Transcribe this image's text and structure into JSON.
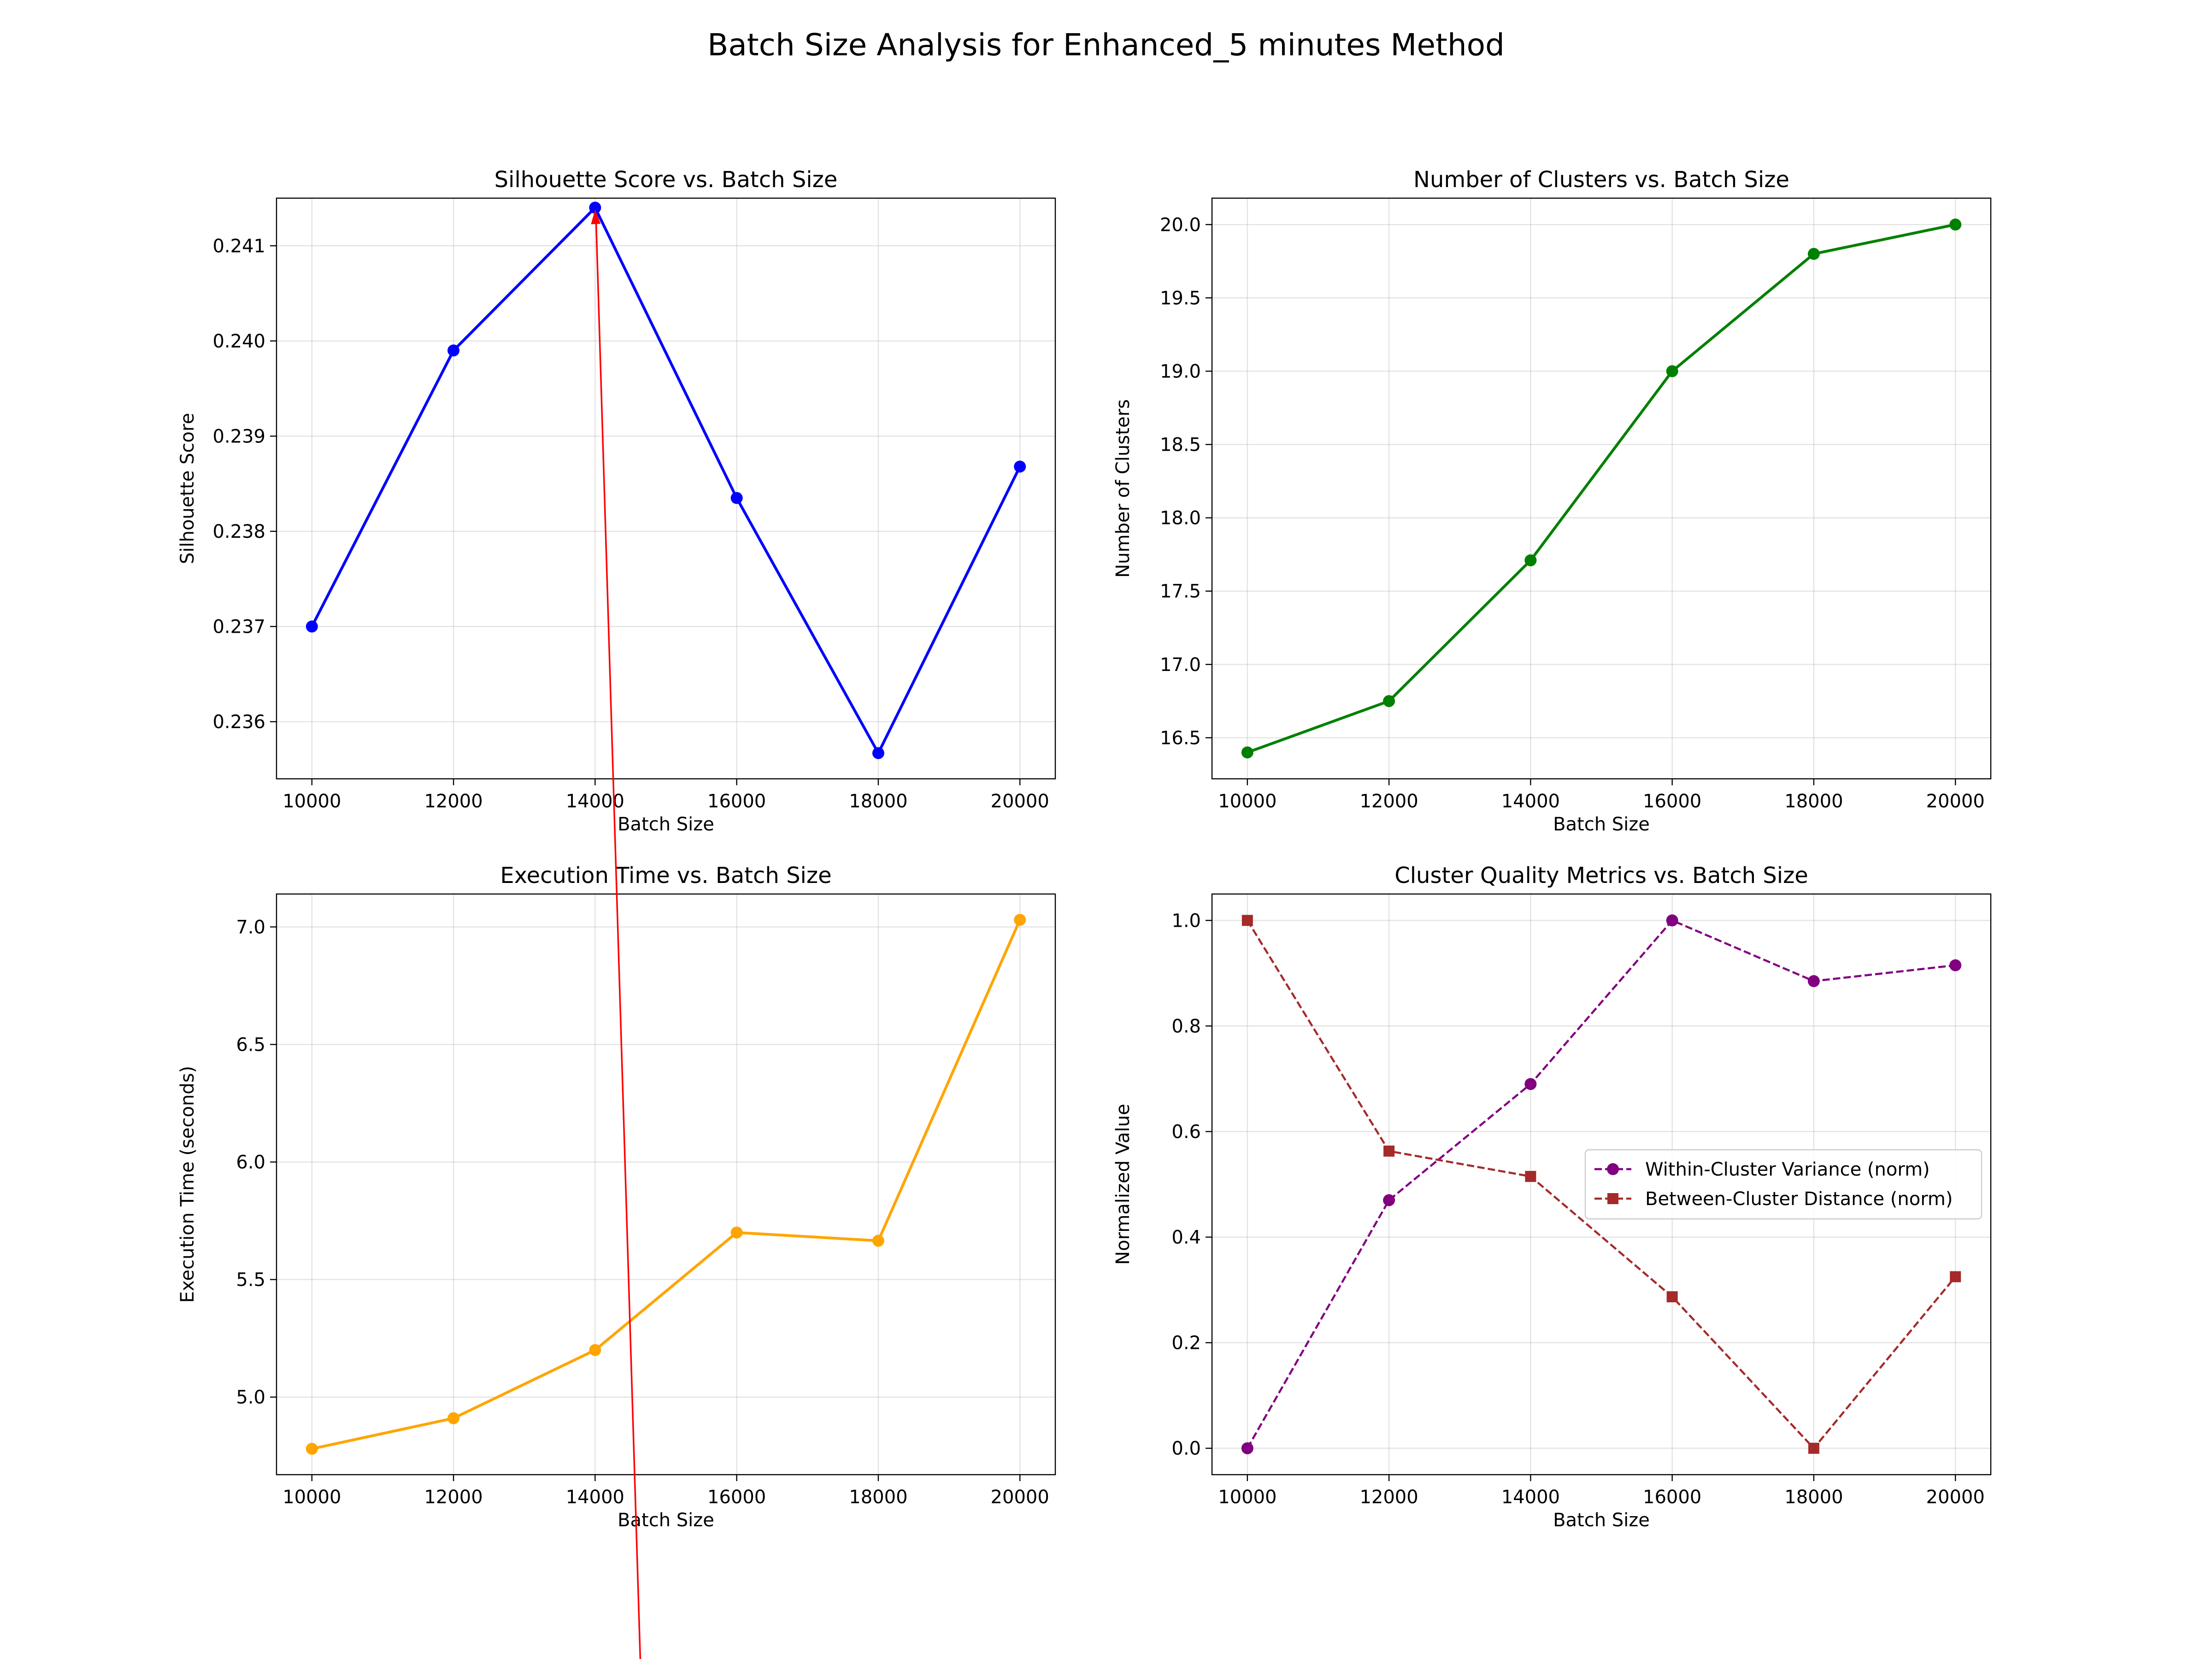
{
  "suptitle": "Batch Size Analysis for Enhanced_5 minutes Method",
  "chart_data": [
    {
      "type": "line",
      "title": "Silhouette Score vs. Batch Size",
      "xlabel": "Batch Size",
      "ylabel": "Silhouette Score",
      "x": [
        10000,
        12000,
        14000,
        16000,
        18000,
        20000
      ],
      "x_ticks": [
        "10000",
        "12000",
        "14000",
        "16000",
        "18000",
        "20000"
      ],
      "xlim": [
        9500,
        20500
      ],
      "ylim": [
        0.2354,
        0.2415
      ],
      "y_ticks": [
        "0.236",
        "0.237",
        "0.238",
        "0.239",
        "0.240",
        "0.241"
      ],
      "grid": true,
      "series": [
        {
          "values": [
            0.237,
            0.2399,
            0.2414,
            0.23835,
            0.23567,
            0.23868
          ],
          "color": "#0000ff",
          "marker": "circle",
          "linestyle": "solid"
        }
      ]
    },
    {
      "type": "line",
      "title": "Number of Clusters vs. Batch Size",
      "xlabel": "Batch Size",
      "ylabel": "Number of Clusters",
      "x": [
        10000,
        12000,
        14000,
        16000,
        18000,
        20000
      ],
      "x_ticks": [
        "10000",
        "12000",
        "14000",
        "16000",
        "18000",
        "20000"
      ],
      "xlim": [
        9500,
        20500
      ],
      "ylim": [
        16.22,
        20.18
      ],
      "y_ticks": [
        "16.5",
        "17.0",
        "17.5",
        "18.0",
        "18.5",
        "19.0",
        "19.5",
        "20.0"
      ],
      "grid": true,
      "series": [
        {
          "values": [
            16.4,
            16.75,
            17.71,
            19.0,
            19.8,
            20.0
          ],
          "color": "#008000",
          "marker": "circle",
          "linestyle": "solid"
        }
      ]
    },
    {
      "type": "line",
      "title": "Execution Time vs. Batch Size",
      "xlabel": "Batch Size",
      "ylabel": "Execution Time (seconds)",
      "x": [
        10000,
        12000,
        14000,
        16000,
        18000,
        20000
      ],
      "x_ticks": [
        "10000",
        "12000",
        "14000",
        "16000",
        "18000",
        "20000"
      ],
      "xlim": [
        9500,
        20500
      ],
      "ylim": [
        4.67,
        7.14
      ],
      "y_ticks": [
        "5.0",
        "5.5",
        "6.0",
        "6.5",
        "7.0"
      ],
      "grid": true,
      "series": [
        {
          "values": [
            4.78,
            4.91,
            5.2,
            5.7,
            5.665,
            7.03
          ],
          "color": "#ffa500",
          "marker": "circle",
          "linestyle": "solid"
        }
      ]
    },
    {
      "type": "line",
      "title": "Cluster Quality Metrics vs. Batch Size",
      "xlabel": "Batch Size",
      "ylabel": "Normalized Value",
      "x": [
        10000,
        12000,
        14000,
        16000,
        18000,
        20000
      ],
      "x_ticks": [
        "10000",
        "12000",
        "14000",
        "16000",
        "18000",
        "20000"
      ],
      "xlim": [
        9500,
        20500
      ],
      "ylim": [
        -0.05,
        1.05
      ],
      "y_ticks": [
        "0.0",
        "0.2",
        "0.4",
        "0.6",
        "0.8",
        "1.0"
      ],
      "grid": true,
      "legend": "center-right",
      "series": [
        {
          "name": "Within-Cluster Variance (norm)",
          "values": [
            0.0,
            0.47,
            0.69,
            1.0,
            0.885,
            0.915
          ],
          "color": "#800080",
          "marker": "circle",
          "linestyle": "dashed"
        },
        {
          "name": "Between-Cluster Distance (norm)",
          "values": [
            1.0,
            0.563,
            0.515,
            0.287,
            0.0,
            0.325
          ],
          "color": "#a52a2a",
          "marker": "square",
          "linestyle": "dashed"
        }
      ]
    }
  ],
  "annotation": {
    "type": "arrow",
    "color": "#ff0000",
    "from_panel": 0,
    "from_point": [
      14000,
      0.2414
    ]
  }
}
